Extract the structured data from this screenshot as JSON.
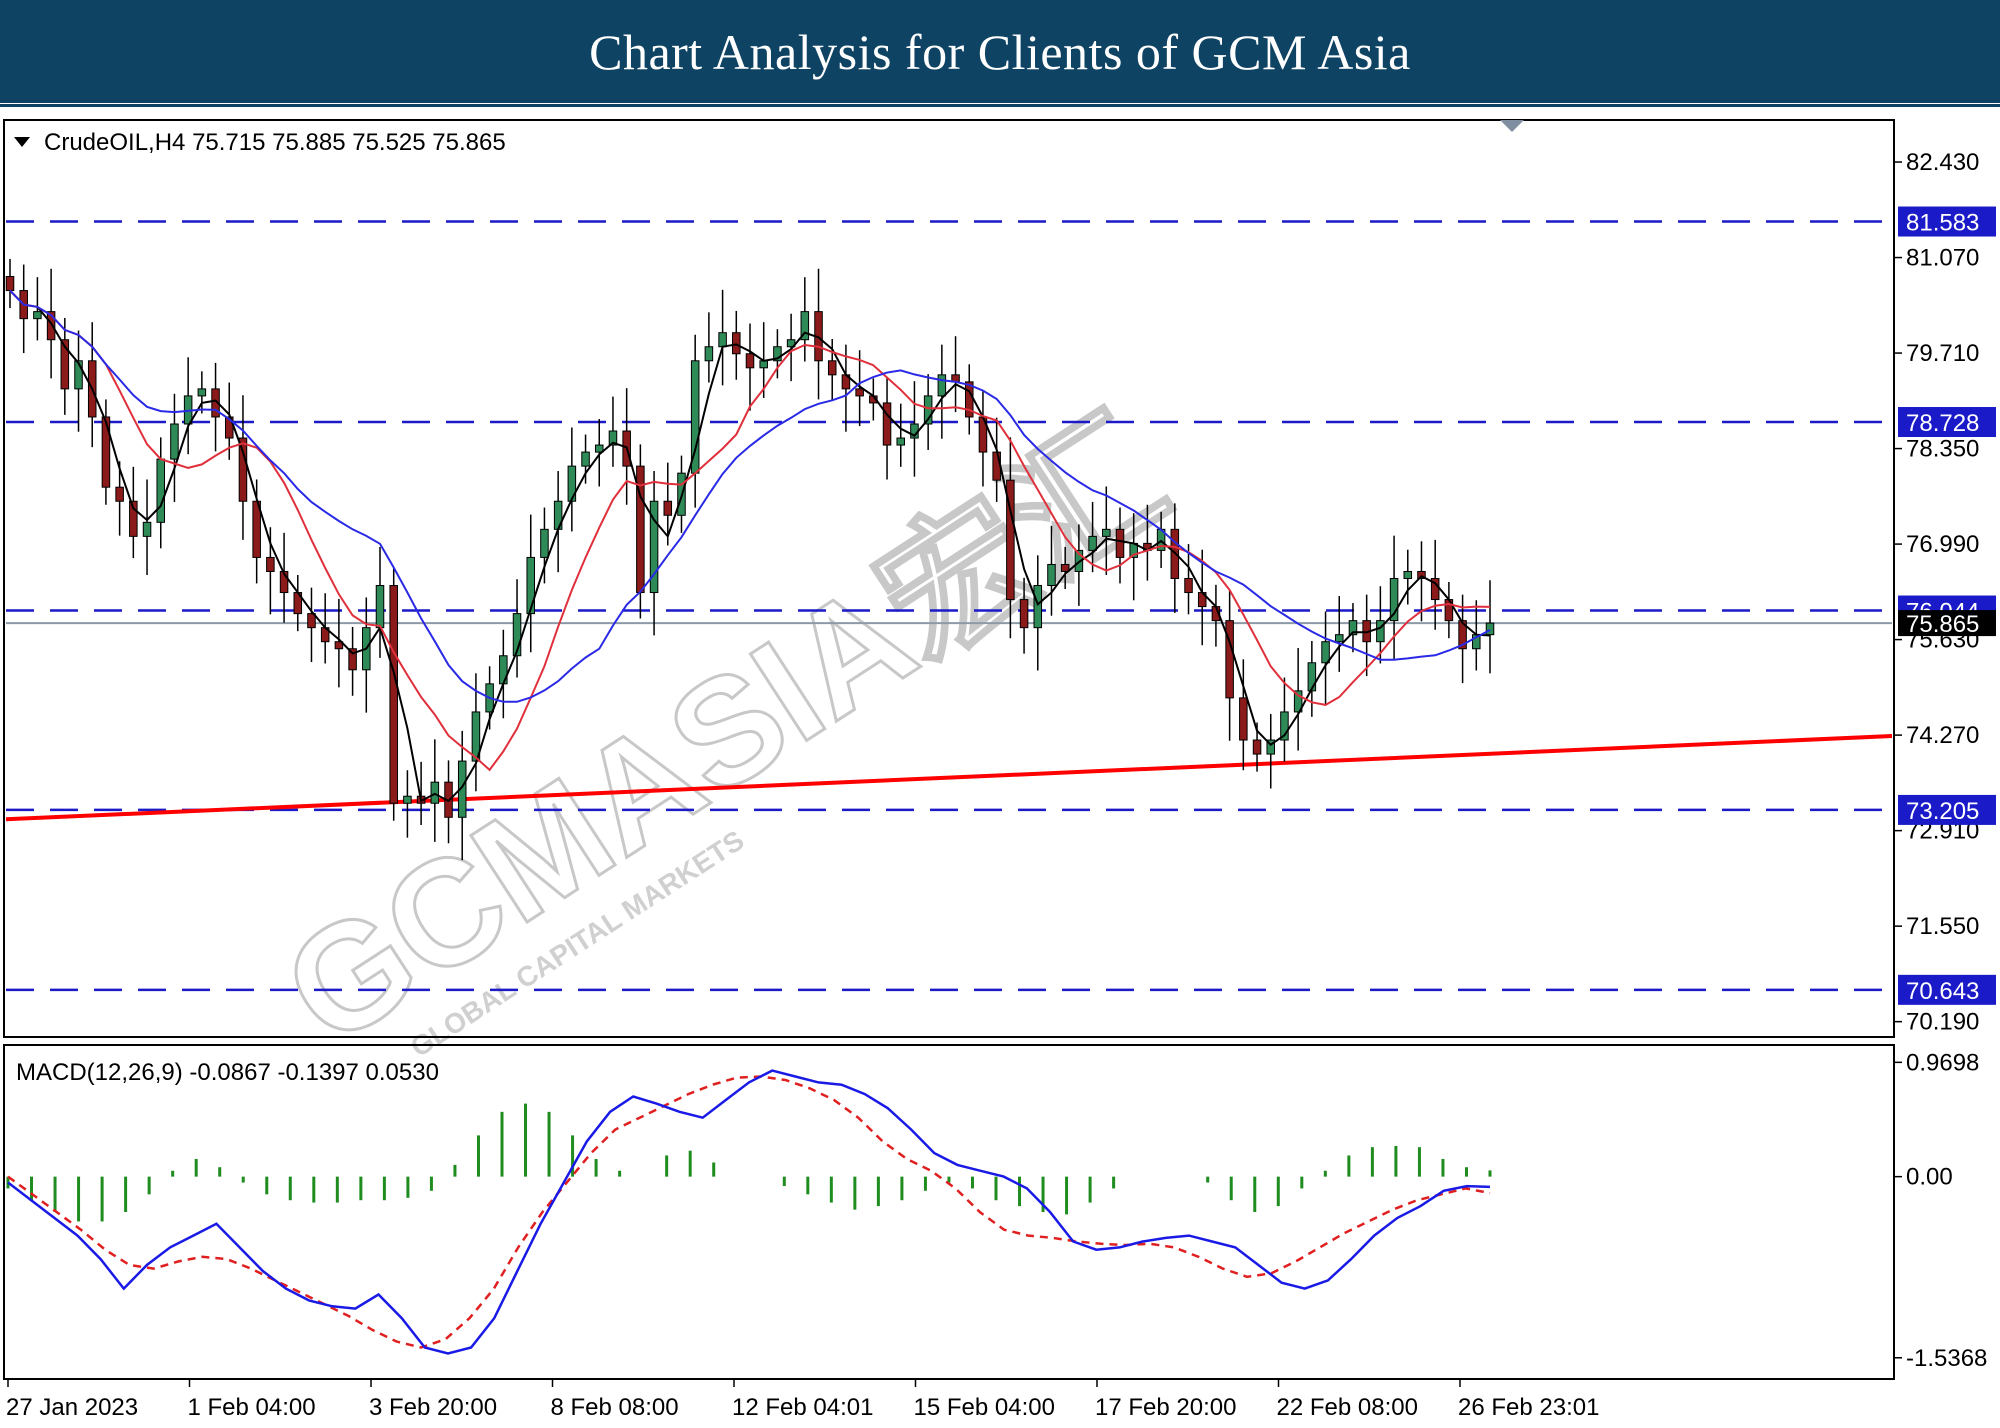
{
  "banner": {
    "title": "Chart Analysis for Clients of GCM Asia"
  },
  "watermark": {
    "main": "GCMASIA宏汇",
    "sub": "GLOBAL CAPITAL MARKETS"
  },
  "colors": {
    "banner_bg": "#0f4364",
    "level_line": "#1a1ac8",
    "trendline": "#ff0000",
    "bull_candle": "#2e8b57",
    "bear_candle": "#8b1a1a",
    "ma_fast": "#000000",
    "ma_mid": "#e0303c",
    "ma_slow": "#2a2ae6",
    "macd_line": "#1a1ae6",
    "signal_line": "#e02020",
    "histogram": "#1e8c1e"
  },
  "chart_data": [
    {
      "type": "candlestick",
      "symbol": "CrudeOIL",
      "timeframe": "H4",
      "header": "CrudeOIL,H4  75.715 75.885 75.525 75.865",
      "ohlc_last": {
        "open": 75.715,
        "high": 75.885,
        "low": 75.525,
        "close": 75.865
      },
      "current_price": 75.865,
      "ylim": [
        70.0,
        83.0
      ],
      "y_ticks": [
        "82.430",
        "81.070",
        "79.710",
        "78.350",
        "76.990",
        "75.630",
        "74.270",
        "72.910",
        "71.550",
        "70.190"
      ],
      "x_ticks": [
        "27 Jan 2023",
        "1 Feb 04:00",
        "3 Feb 20:00",
        "8 Feb 08:00",
        "12 Feb 04:01",
        "15 Feb 04:00",
        "17 Feb 20:00",
        "22 Feb 08:00",
        "26 Feb 23:01"
      ],
      "levels": [
        {
          "value": 81.583,
          "label": "81.583"
        },
        {
          "value": 78.728,
          "label": "78.728"
        },
        {
          "value": 76.044,
          "label": "76.044"
        },
        {
          "value": 73.205,
          "label": "73.205"
        },
        {
          "value": 70.643,
          "label": "70.643"
        }
      ],
      "trendline": {
        "from": {
          "x": "27 Jan 2023",
          "y": 73.1
        },
        "to": {
          "x": "26 Feb 23:01",
          "y": 74.2
        },
        "color": "#ff0000"
      },
      "close_path": [
        80.6,
        80.2,
        80.3,
        79.9,
        79.2,
        79.6,
        78.8,
        77.8,
        77.6,
        77.1,
        77.3,
        78.2,
        78.7,
        79.1,
        79.2,
        78.8,
        78.5,
        77.6,
        76.8,
        76.6,
        76.3,
        76.0,
        75.8,
        75.6,
        75.5,
        75.2,
        75.8,
        76.4,
        73.3,
        73.4,
        73.3,
        73.6,
        73.1,
        73.9,
        74.6,
        75.0,
        75.4,
        76.0,
        76.8,
        77.2,
        77.6,
        78.1,
        78.3,
        78.4,
        78.6,
        78.1,
        76.3,
        77.6,
        77.4,
        78.0,
        79.6,
        79.8,
        80.0,
        79.7,
        79.5,
        79.6,
        79.8,
        79.9,
        80.3,
        79.6,
        79.4,
        79.2,
        79.1,
        79.0,
        78.4,
        78.5,
        78.7,
        79.1,
        79.4,
        79.3,
        78.8,
        78.3,
        77.9,
        76.2,
        75.8,
        76.4,
        76.7,
        76.6,
        76.9,
        77.1,
        77.2,
        76.8,
        77.0,
        76.9,
        77.2,
        76.5,
        76.3,
        76.1,
        75.9,
        74.8,
        74.2,
        74.0,
        74.2,
        74.6,
        74.9,
        75.3,
        75.6,
        75.7,
        75.9,
        75.6,
        75.9,
        76.5,
        76.6,
        76.5,
        76.2,
        75.9,
        75.5,
        75.7,
        75.865
      ],
      "moving_averages": [
        {
          "role": "fast",
          "color": "#000000"
        },
        {
          "role": "mid",
          "color": "#e0303c"
        },
        {
          "role": "slow",
          "color": "#2a2ae6"
        }
      ]
    },
    {
      "type": "macd",
      "header": "MACD(12,26,9) -0.0867 -0.1397 0.0530",
      "params": [
        12,
        26,
        9
      ],
      "values": {
        "macd": -0.0867,
        "signal": -0.1397,
        "histogram": 0.053
      },
      "ylim": [
        -1.7,
        1.1
      ],
      "y_ticks": [
        "0.9698",
        "0.00",
        "-1.5368"
      ],
      "macd_line": [
        -0.05,
        -0.2,
        -0.35,
        -0.5,
        -0.7,
        -0.95,
        -0.75,
        -0.6,
        -0.5,
        -0.4,
        -0.6,
        -0.8,
        -0.95,
        -1.05,
        -1.1,
        -1.12,
        -1.0,
        -1.2,
        -1.45,
        -1.5,
        -1.45,
        -1.2,
        -0.8,
        -0.4,
        -0.05,
        0.3,
        0.55,
        0.68,
        0.62,
        0.55,
        0.5,
        0.65,
        0.8,
        0.9,
        0.85,
        0.8,
        0.78,
        0.7,
        0.58,
        0.4,
        0.2,
        0.1,
        0.05,
        0.0,
        -0.1,
        -0.3,
        -0.55,
        -0.62,
        -0.6,
        -0.55,
        -0.52,
        -0.5,
        -0.55,
        -0.6,
        -0.75,
        -0.9,
        -0.95,
        -0.88,
        -0.7,
        -0.5,
        -0.35,
        -0.25,
        -0.12,
        -0.08,
        -0.0867
      ],
      "signal_line": [
        0.0,
        -0.15,
        -0.3,
        -0.45,
        -0.62,
        -0.75,
        -0.78,
        -0.72,
        -0.68,
        -0.7,
        -0.78,
        -0.88,
        -0.98,
        -1.08,
        -1.18,
        -1.3,
        -1.4,
        -1.45,
        -1.38,
        -1.2,
        -0.95,
        -0.6,
        -0.3,
        -0.05,
        0.2,
        0.4,
        0.5,
        0.6,
        0.7,
        0.78,
        0.84,
        0.85,
        0.82,
        0.75,
        0.65,
        0.5,
        0.3,
        0.15,
        0.05,
        -0.1,
        -0.3,
        -0.45,
        -0.5,
        -0.52,
        -0.55,
        -0.57,
        -0.58,
        -0.57,
        -0.6,
        -0.68,
        -0.78,
        -0.85,
        -0.82,
        -0.72,
        -0.6,
        -0.48,
        -0.38,
        -0.28,
        -0.2,
        -0.15,
        -0.1,
        -0.1397
      ],
      "histogram": [
        -0.1,
        -0.2,
        -0.3,
        -0.38,
        -0.38,
        -0.3,
        -0.15,
        0.05,
        0.15,
        0.08,
        -0.05,
        -0.15,
        -0.2,
        -0.22,
        -0.22,
        -0.2,
        -0.2,
        -0.18,
        -0.12,
        0.1,
        0.35,
        0.55,
        0.62,
        0.55,
        0.35,
        0.15,
        0.05,
        0.0,
        0.18,
        0.22,
        0.12,
        0.0,
        0.0,
        -0.08,
        -0.15,
        -0.22,
        -0.28,
        -0.25,
        -0.2,
        -0.12,
        -0.05,
        -0.1,
        -0.2,
        -0.25,
        -0.3,
        -0.32,
        -0.22,
        -0.1,
        0.0,
        0.0,
        0.0,
        -0.05,
        -0.2,
        -0.3,
        -0.25,
        -0.1,
        0.05,
        0.18,
        0.25,
        0.26,
        0.25,
        0.15,
        0.08,
        0.053
      ]
    }
  ]
}
